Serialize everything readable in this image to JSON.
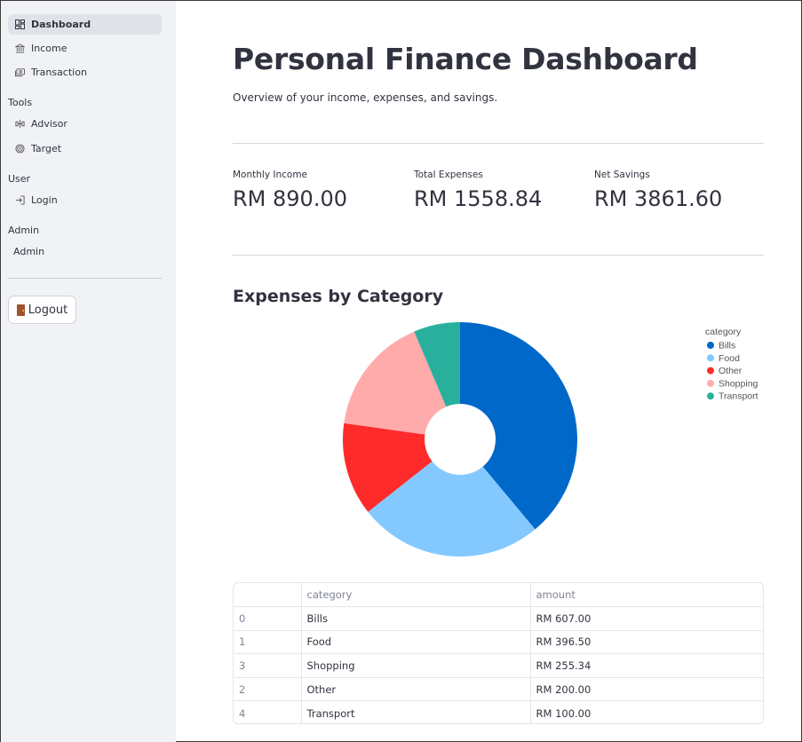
{
  "sidebar": {
    "items": [
      {
        "label": "Dashboard",
        "icon": "dashboard-icon",
        "active": true
      },
      {
        "label": "Income",
        "icon": "bank-icon"
      },
      {
        "label": "Transaction",
        "icon": "payments-icon"
      }
    ],
    "sections": [
      {
        "title": "Tools",
        "items": [
          {
            "label": "Advisor",
            "icon": "balance-icon"
          },
          {
            "label": "Target",
            "icon": "target-icon"
          }
        ]
      },
      {
        "title": "User",
        "items": [
          {
            "label": "Login",
            "icon": "login-icon"
          }
        ]
      },
      {
        "title": "Admin",
        "items": [
          {
            "label": "Admin"
          }
        ]
      }
    ],
    "logout_label": "Logout"
  },
  "main": {
    "title": "Personal Finance Dashboard",
    "subtitle": "Overview of your income, expenses, and savings.",
    "metrics": [
      {
        "label": "Monthly Income",
        "value": "RM 890.00"
      },
      {
        "label": "Total Expenses",
        "value": "RM 1558.84"
      },
      {
        "label": "Net Savings",
        "value": "RM 3861.60"
      }
    ],
    "chart_title": "Expenses by Category"
  },
  "chart_data": {
    "type": "pie",
    "donut": true,
    "legend_title": "category",
    "legend_position": "top-right",
    "categories": [
      "Bills",
      "Food",
      "Other",
      "Shopping",
      "Transport"
    ],
    "values": [
      607.0,
      396.5,
      200.0,
      255.34,
      100.0
    ],
    "colors": [
      "#0068c9",
      "#83c9ff",
      "#ff2b2b",
      "#ffabab",
      "#29b09d"
    ]
  },
  "table": {
    "columns": [
      "",
      "category",
      "amount"
    ],
    "rows": [
      [
        "0",
        "Bills",
        "RM 607.00"
      ],
      [
        "1",
        "Food",
        "RM 396.50"
      ],
      [
        "3",
        "Shopping",
        "RM 255.34"
      ],
      [
        "2",
        "Other",
        "RM 200.00"
      ],
      [
        "4",
        "Transport",
        "RM 100.00"
      ]
    ]
  }
}
